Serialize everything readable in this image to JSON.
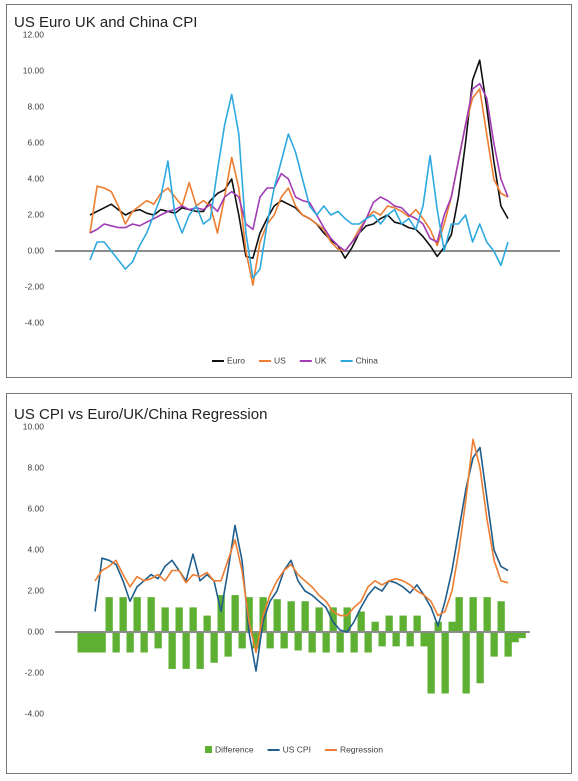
{
  "chart_data": [
    {
      "type": "line",
      "title": "US Euro UK and China CPI",
      "ylim": [
        -5,
        12
      ],
      "yticks": [
        {
          "value": -4,
          "label": "-4.00"
        },
        {
          "value": -2,
          "label": "-2.00"
        },
        {
          "value": 0,
          "label": "0.00"
        },
        {
          "value": 2,
          "label": "2.00"
        },
        {
          "value": 4,
          "label": "4.00"
        },
        {
          "value": 6,
          "label": "6.00"
        },
        {
          "value": 8,
          "label": "8.00"
        },
        {
          "value": 10,
          "label": "10.00"
        },
        {
          "value": 12,
          "label": "12.00"
        }
      ],
      "grid": false,
      "legend": "bottom",
      "series": [
        {
          "name": "Euro",
          "color": "#111111",
          "values": [
            2.0,
            2.2,
            2.4,
            2.6,
            2.3,
            2.0,
            2.2,
            2.3,
            2.1,
            2.0,
            2.3,
            2.2,
            2.1,
            2.4,
            2.3,
            2.2,
            2.2,
            2.8,
            3.2,
            3.4,
            4.0,
            2.0,
            -0.3,
            -0.4,
            1.0,
            1.8,
            2.5,
            2.8,
            2.6,
            2.4,
            2.0,
            1.8,
            1.5,
            1.0,
            0.6,
            0.3,
            -0.4,
            0.2,
            1.0,
            1.4,
            1.5,
            1.8,
            2.0,
            1.6,
            1.5,
            1.3,
            1.2,
            0.8,
            0.3,
            -0.3,
            0.2,
            0.9,
            3.0,
            6.0,
            9.5,
            10.6,
            8.0,
            5.0,
            2.5,
            1.8
          ]
        },
        {
          "name": "US",
          "color": "#ED7D31",
          "values": [
            1.0,
            3.6,
            3.5,
            3.3,
            2.5,
            1.5,
            2.2,
            2.5,
            2.8,
            2.6,
            3.2,
            3.5,
            3.0,
            2.5,
            3.8,
            2.5,
            2.8,
            2.5,
            1.0,
            3.0,
            5.2,
            3.5,
            0.0,
            -1.9,
            0.5,
            1.5,
            2.0,
            3.0,
            3.5,
            2.5,
            2.0,
            1.8,
            1.5,
            1.2,
            0.5,
            0.1,
            0.0,
            0.5,
            1.2,
            1.8,
            2.2,
            2.0,
            2.5,
            2.4,
            2.2,
            1.9,
            2.3,
            1.8,
            1.2,
            0.3,
            1.5,
            3.0,
            5.0,
            7.0,
            8.5,
            9.0,
            6.5,
            4.0,
            3.2,
            3.0
          ]
        },
        {
          "name": "UK",
          "color": "#A03CB4",
          "values": [
            1.0,
            1.2,
            1.5,
            1.4,
            1.3,
            1.3,
            1.5,
            1.4,
            1.6,
            1.8,
            2.0,
            2.2,
            2.3,
            2.5,
            2.3,
            2.4,
            2.3,
            2.6,
            2.2,
            3.0,
            3.3,
            3.0,
            1.5,
            1.2,
            3.0,
            3.5,
            3.5,
            4.3,
            4.0,
            3.0,
            2.8,
            2.7,
            2.0,
            1.3,
            0.7,
            0.3,
            0.0,
            0.5,
            1.0,
            1.8,
            2.7,
            3.0,
            2.8,
            2.5,
            2.4,
            2.0,
            1.8,
            1.5,
            0.7,
            0.5,
            2.0,
            3.0,
            5.0,
            7.0,
            9.0,
            9.3,
            8.5,
            6.0,
            4.0,
            3.0
          ]
        },
        {
          "name": "China",
          "color": "#2EA9DF",
          "values": [
            -0.5,
            0.5,
            0.5,
            0.0,
            -0.5,
            -1.0,
            -0.6,
            0.3,
            1.0,
            2.0,
            3.0,
            5.0,
            2.0,
            1.0,
            2.0,
            2.5,
            1.5,
            1.8,
            4.5,
            7.0,
            8.7,
            6.5,
            1.0,
            -1.5,
            -1.0,
            1.5,
            3.5,
            5.0,
            6.5,
            5.5,
            4.0,
            2.5,
            2.0,
            2.5,
            2.0,
            2.2,
            1.8,
            1.5,
            1.5,
            1.8,
            2.0,
            1.5,
            2.0,
            2.3,
            1.5,
            1.8,
            1.2,
            2.5,
            5.3,
            2.3,
            0.0,
            1.5,
            1.5,
            2.0,
            0.5,
            1.5,
            0.5,
            0.0,
            -0.8,
            0.5
          ]
        }
      ]
    },
    {
      "type": "combo",
      "title": "US CPI vs Euro/UK/China Regression",
      "ylim": [
        -5,
        10
      ],
      "yticks": [
        {
          "value": -4,
          "label": "-4.00"
        },
        {
          "value": -2,
          "label": "-2.00"
        },
        {
          "value": 0,
          "label": "0.00"
        },
        {
          "value": 2,
          "label": "2.00"
        },
        {
          "value": 4,
          "label": "4.00"
        },
        {
          "value": 6,
          "label": "6.00"
        },
        {
          "value": 8,
          "label": "8.00"
        },
        {
          "value": 10,
          "label": "10.00"
        }
      ],
      "grid": false,
      "legend": "bottom",
      "series": [
        {
          "name": "Difference",
          "type": "bar",
          "color": "#5DB031",
          "values": [
            -1.0,
            -1.0,
            -1.0,
            -1.0,
            1.7,
            -1.0,
            1.7,
            -1.0,
            1.7,
            -1.0,
            1.7,
            -0.8,
            1.2,
            -1.8,
            1.2,
            -1.8,
            1.2,
            -1.8,
            0.8,
            -1.5,
            1.8,
            -1.2,
            1.8,
            -0.8,
            1.7,
            -0.8,
            1.7,
            -0.8,
            1.6,
            -0.8,
            1.5,
            -0.9,
            1.5,
            -1.0,
            1.2,
            -1.0,
            1.2,
            -1.0,
            1.2,
            -1.0,
            1.0,
            -1.0,
            0.5,
            -0.7,
            0.8,
            -0.7,
            0.8,
            -0.7,
            0.8,
            -0.7,
            -3.0,
            0.5,
            -3.0,
            0.5,
            1.7,
            -3.0,
            1.7,
            -2.5,
            1.7,
            -1.2,
            1.5,
            -1.2,
            -0.5,
            -0.3
          ]
        },
        {
          "name": "US CPI",
          "type": "line",
          "color": "#1F5E8C",
          "values": [
            null,
            null,
            1.0,
            3.6,
            3.5,
            3.3,
            2.5,
            1.5,
            2.2,
            2.5,
            2.8,
            2.6,
            3.2,
            3.5,
            3.0,
            2.5,
            3.8,
            2.5,
            2.8,
            2.5,
            1.0,
            3.0,
            5.2,
            3.5,
            0.0,
            -1.9,
            0.5,
            1.5,
            2.0,
            3.0,
            3.5,
            2.5,
            2.0,
            1.8,
            1.5,
            1.2,
            0.5,
            0.1,
            0.0,
            0.5,
            1.2,
            1.8,
            2.2,
            2.0,
            2.5,
            2.4,
            2.2,
            1.9,
            2.3,
            1.8,
            1.2,
            0.3,
            1.5,
            3.0,
            5.0,
            7.0,
            8.5,
            9.0,
            6.5,
            4.0,
            3.2,
            3.0,
            null,
            null
          ]
        },
        {
          "name": "Regression",
          "type": "line",
          "color": "#ED7D31",
          "values": [
            null,
            null,
            2.5,
            3.0,
            3.2,
            3.5,
            2.8,
            2.2,
            2.7,
            2.5,
            2.6,
            2.8,
            2.5,
            3.0,
            3.0,
            2.4,
            2.8,
            2.7,
            2.9,
            2.5,
            2.5,
            3.5,
            4.5,
            3.0,
            0.5,
            -1.0,
            0.8,
            1.8,
            2.5,
            3.0,
            3.3,
            2.8,
            2.5,
            2.2,
            1.8,
            1.5,
            1.0,
            0.8,
            0.8,
            1.2,
            1.5,
            2.2,
            2.5,
            2.3,
            2.5,
            2.6,
            2.5,
            2.3,
            2.0,
            1.8,
            1.5,
            0.8,
            1.0,
            2.0,
            4.0,
            6.5,
            9.4,
            8.0,
            5.5,
            3.5,
            2.5,
            2.4,
            null,
            null
          ]
        }
      ]
    }
  ]
}
